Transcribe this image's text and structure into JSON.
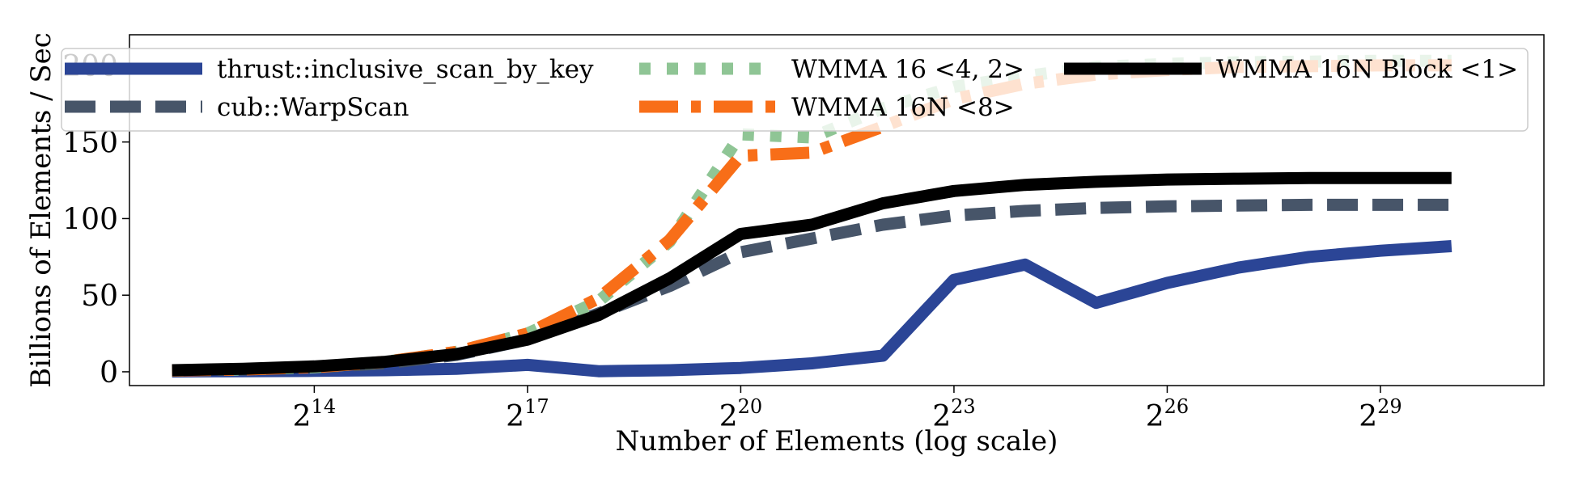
{
  "chart_data": {
    "type": "line",
    "title": "",
    "xlabel": "Number of Elements (log scale)",
    "ylabel": "Billions of Elements / Sec",
    "x_scale": "log2",
    "x_axis_quantity": "log2 of number of elements",
    "x_ticks": [
      14,
      17,
      20,
      23,
      26,
      29
    ],
    "x_tick_labels": [
      {
        "base": "2",
        "exp": "14"
      },
      {
        "base": "2",
        "exp": "17"
      },
      {
        "base": "2",
        "exp": "20"
      },
      {
        "base": "2",
        "exp": "23"
      },
      {
        "base": "2",
        "exp": "26"
      },
      {
        "base": "2",
        "exp": "29"
      }
    ],
    "xlim": [
      11.4,
      31.3
    ],
    "y_ticks": [
      0,
      50,
      100,
      150,
      200
    ],
    "y_tick_labels": [
      "0",
      "50",
      "100",
      "150",
      "200"
    ],
    "ylim": [
      -9,
      220
    ],
    "grid": false,
    "legend_position": "top",
    "legend_columns": 3,
    "x": [
      12,
      13,
      14,
      15,
      16,
      17,
      18,
      19,
      20,
      21,
      22,
      23,
      24,
      25,
      26,
      27,
      28,
      29,
      30
    ],
    "series": [
      {
        "name": "thrust::inclusive_scan_by_key",
        "color": "#2b4596",
        "dash": "solid",
        "values": [
          0.2,
          0.4,
          0.6,
          1.0,
          2.0,
          4.5,
          0.4,
          1.0,
          2.5,
          5.5,
          10.5,
          60,
          70,
          45,
          58,
          68,
          75,
          79,
          82
        ]
      },
      {
        "name": "cub::WarpScan",
        "color": "#475569",
        "dash": "dashed",
        "values": [
          0.8,
          1.5,
          2.8,
          5.5,
          11,
          21,
          38,
          56,
          78,
          87,
          96,
          102,
          105,
          107,
          108,
          108.5,
          109,
          109,
          109
        ]
      },
      {
        "name": "WMMA 16 <4, 2>",
        "color": "#8fc595",
        "dash": "dotted",
        "values": [
          0.8,
          1.5,
          3.0,
          6.5,
          13,
          25,
          46,
          85,
          155,
          153,
          172,
          186,
          193,
          199,
          201,
          202,
          202.5,
          203,
          203
        ]
      },
      {
        "name": "WMMA 16N <8>",
        "color": "#f86e18",
        "dash": "dashdot",
        "values": [
          0.8,
          1.5,
          3.0,
          6.5,
          13,
          25,
          48,
          86,
          141,
          143,
          160,
          178,
          188,
          194,
          197,
          199,
          199.5,
          200,
          200
        ]
      },
      {
        "name": "WMMA 16N Block <1>",
        "color": "#000000",
        "dash": "solid",
        "values": [
          1.0,
          2.0,
          3.5,
          6.5,
          11.5,
          21,
          37,
          61,
          90,
          96,
          110,
          118,
          122,
          124,
          125.5,
          126,
          126.5,
          126.5,
          126.5
        ]
      }
    ]
  }
}
